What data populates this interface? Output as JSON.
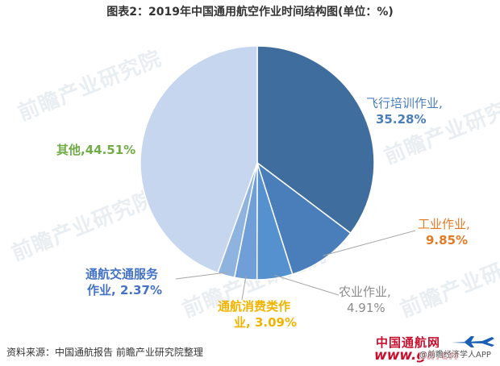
{
  "chart_data": {
    "type": "pie",
    "title": "图表2：2019年中国通用航空作业时间结构图(单位：%)",
    "slices": [
      {
        "label": "飞行培训作业,",
        "value": 35.28,
        "value_text": "35.28%",
        "color": "#3f6e9e",
        "label_color": "#4a7ebb"
      },
      {
        "label": "工业作业,",
        "value": 9.85,
        "value_text": "9.85%",
        "color": "#4a7ebb",
        "label_color": "#e37b24"
      },
      {
        "label": "农业作业,",
        "value": 4.91,
        "value_text": "4.91%",
        "color": "#5590cf",
        "label_color": "#8c8c8c"
      },
      {
        "label": "通航消费类作",
        "label2": "业,",
        "value": 3.09,
        "value_text": "3.09%",
        "color": "#6f9fd6",
        "label_color": "#f0b400"
      },
      {
        "label": "通航交通服务",
        "label2": "作业,",
        "value": 2.37,
        "value_text": "2.37%",
        "color": "#8fb3df",
        "label_color": "#4472c4"
      },
      {
        "label": "其他,",
        "value": 44.51,
        "value_text": "44.51%",
        "color": "#c5d6ee",
        "label_color": "#70ad47"
      }
    ]
  },
  "source": "资料来源：中国通航报告 前瞻产业研究院整理",
  "watermark": {
    "text": "前瞻产业研究院"
  },
  "logo": {
    "cn": "中国通航网",
    "en": "www.ga.cn",
    "wechat": "@前瞻经济学人APP"
  }
}
